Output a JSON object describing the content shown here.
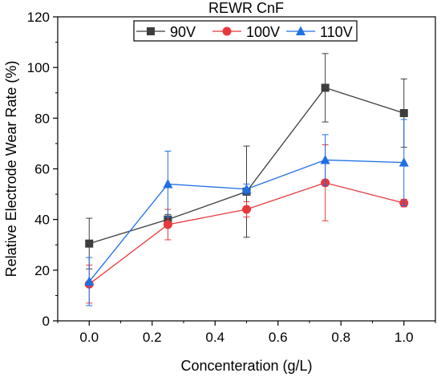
{
  "chart_data": {
    "type": "line",
    "title": "",
    "xlabel": "Concenteration (g/L)",
    "ylabel": "Relative Electrode Wear Rate (%)",
    "xlim": [
      -0.1,
      1.1
    ],
    "ylim": [
      0,
      120
    ],
    "xticks": [
      "0.0",
      "0.2",
      "0.4",
      "0.6",
      "0.8",
      "1.0"
    ],
    "xtick_values": [
      0.0,
      0.2,
      0.4,
      0.6,
      0.8,
      1.0
    ],
    "yticks": [
      "0",
      "20",
      "40",
      "60",
      "80",
      "100",
      "120"
    ],
    "ytick_values": [
      0,
      20,
      40,
      60,
      80,
      100,
      120
    ],
    "grid": false,
    "legend": {
      "title": "REWR CnF",
      "placement": "top-center",
      "entries": [
        "90V",
        "100V",
        "110V"
      ]
    },
    "x": [
      0.0,
      0.25,
      0.5,
      0.75,
      1.0
    ],
    "series": [
      {
        "name": "90V",
        "color": "#3d3d3d",
        "marker": "square",
        "values": [
          30.5,
          40,
          51,
          92,
          82
        ],
        "errors": [
          10,
          2,
          18,
          13.5,
          13.5
        ]
      },
      {
        "name": "100V",
        "color": "#e8383c",
        "marker": "circle",
        "values": [
          14.5,
          38,
          44,
          54.5,
          46.5
        ],
        "errors": [
          7.5,
          6,
          3,
          15,
          1.5
        ]
      },
      {
        "name": "110V",
        "color": "#1f6fe5",
        "marker": "triangle",
        "values": [
          15.5,
          54,
          52,
          63.5,
          62.5
        ],
        "errors": [
          9.5,
          13,
          2,
          10,
          17
        ]
      }
    ]
  }
}
